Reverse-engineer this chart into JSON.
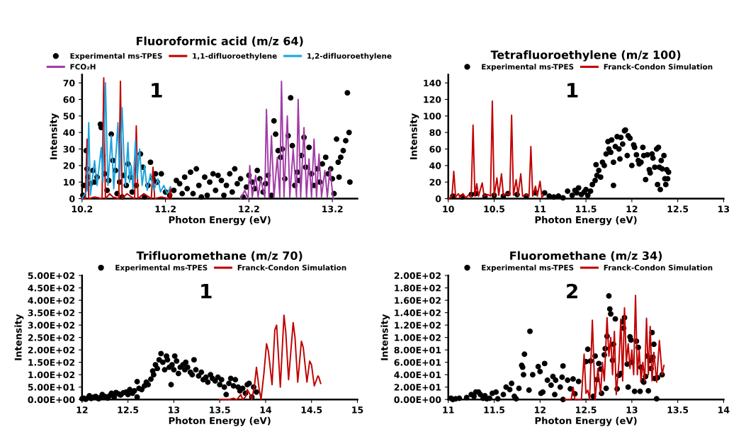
{
  "chart_data": [
    {
      "type": "line",
      "title": "Fluoroformic acid (m/z 64)",
      "xlabel": "Photon Energy (eV)",
      "ylabel": "Intensity",
      "annotations": [
        "1"
      ],
      "legend": "top",
      "grid": false,
      "xlim": [
        10.2,
        13.5
      ],
      "xticks": [
        10.2,
        11.2,
        12.2,
        13.2
      ],
      "ylim": [
        0,
        75
      ],
      "yticks": [
        0,
        10,
        20,
        30,
        40,
        50,
        60,
        70
      ],
      "series": [
        {
          "name": "Experimental ms-TPES",
          "type": "scatter",
          "marker": "circle",
          "color": "#000000",
          "x": [
            10.21,
            10.22,
            10.25,
            10.26,
            10.27,
            10.3,
            10.33,
            10.35,
            10.38,
            10.42,
            10.43,
            10.45,
            10.47,
            10.5,
            10.52,
            10.55,
            10.57,
            10.6,
            10.62,
            10.65,
            10.68,
            10.7,
            10.73,
            10.75,
            10.78,
            10.8,
            10.85,
            10.9,
            10.93,
            10.95,
            10.99,
            11.02,
            11.05,
            11.08,
            11.1,
            11.15,
            11.2,
            11.25,
            11.3,
            11.33,
            11.37,
            11.4,
            11.43,
            11.46,
            11.5,
            11.53,
            11.57,
            11.6,
            11.63,
            11.67,
            11.7,
            11.73,
            11.77,
            11.8,
            11.83,
            11.87,
            11.9,
            11.93,
            11.97,
            12.0,
            12.03,
            12.06,
            12.1,
            12.13,
            12.17,
            12.2,
            12.24,
            12.27,
            12.3,
            12.33,
            12.37,
            12.4,
            12.43,
            12.47,
            12.5,
            12.52,
            12.55,
            12.58,
            12.6,
            12.63,
            12.67,
            12.7,
            12.72,
            12.75,
            12.78,
            12.8,
            12.83,
            12.86,
            12.88,
            12.92,
            12.95,
            12.98,
            13.02,
            13.05,
            13.08,
            13.12,
            13.15,
            13.18,
            13.2,
            13.22,
            13.25,
            13.27,
            13.28,
            13.3,
            13.33,
            13.36,
            13.38,
            13.4,
            13.41
          ],
          "values": [
            2,
            8,
            29,
            18,
            13,
            9,
            17,
            10,
            13,
            45,
            43,
            26,
            15,
            5,
            11,
            39,
            23,
            17,
            3,
            10,
            1,
            14,
            8,
            21,
            13,
            4,
            8,
            27,
            19,
            1,
            8,
            22,
            12,
            15,
            10,
            15,
            4,
            2,
            5,
            11,
            9,
            3,
            13,
            6,
            16,
            3,
            18,
            8,
            1,
            13,
            2,
            10,
            15,
            5,
            14,
            11,
            2,
            8,
            15,
            4,
            18,
            9,
            12,
            1,
            7,
            14,
            10,
            6,
            17,
            12,
            4,
            9,
            14,
            2,
            47,
            39,
            29,
            25,
            30,
            12,
            38,
            61,
            32,
            8,
            16,
            11,
            26,
            37,
            19,
            31,
            15,
            8,
            18,
            10,
            21,
            25,
            15,
            18,
            12,
            3,
            36,
            22,
            13,
            25,
            29,
            35,
            64,
            40,
            10
          ]
        },
        {
          "name": "1,1-difluoroethylene",
          "color": "#c00000",
          "x": [
            10.2,
            10.24,
            10.26,
            10.28,
            10.35,
            10.44,
            10.46,
            10.48,
            10.53,
            10.57,
            10.64,
            10.66,
            10.68,
            10.74,
            10.79,
            10.83,
            10.85,
            10.87,
            10.94,
            11.0,
            11.03,
            11.05,
            11.07,
            11.15,
            11.24,
            11.26,
            11.27
          ],
          "values": [
            0,
            0,
            36,
            0,
            1,
            0,
            73,
            0,
            3,
            1,
            0,
            71,
            0,
            3,
            1,
            0,
            44,
            0,
            3,
            1,
            0,
            19,
            0,
            1,
            0,
            7,
            0
          ]
        },
        {
          "name": "1,2-difluoroethylene",
          "color": "#1ca3dc",
          "x": [
            10.2,
            10.26,
            10.28,
            10.3,
            10.35,
            10.38,
            10.43,
            10.45,
            10.48,
            10.51,
            10.55,
            10.58,
            10.63,
            10.65,
            10.68,
            10.7,
            10.72,
            10.75,
            10.77,
            10.79,
            10.81,
            10.84,
            10.86,
            10.89,
            10.92,
            10.95,
            10.98,
            11.02,
            11.06,
            11.11,
            11.14,
            11.18,
            11.22,
            11.26
          ],
          "values": [
            0,
            5,
            46,
            2,
            23,
            8,
            31,
            10,
            70,
            8,
            38,
            6,
            46,
            12,
            55,
            27,
            8,
            34,
            10,
            20,
            6,
            35,
            12,
            30,
            8,
            20,
            5,
            15,
            5,
            12,
            4,
            8,
            3,
            7
          ]
        },
        {
          "name": "FCO₂H",
          "color": "#a23ba6",
          "x": [
            12.1,
            12.15,
            12.19,
            12.21,
            12.24,
            12.28,
            12.31,
            12.34,
            12.39,
            12.41,
            12.44,
            12.47,
            12.5,
            12.54,
            12.57,
            12.59,
            12.62,
            12.66,
            12.69,
            12.73,
            12.77,
            12.79,
            12.82,
            12.86,
            12.89,
            12.92,
            12.95,
            12.98,
            13.01,
            13.04,
            13.07,
            13.11,
            13.14,
            13.17,
            13.21
          ],
          "values": [
            0,
            5,
            0,
            20,
            1,
            14,
            1,
            12,
            1,
            54,
            1,
            38,
            1,
            25,
            1,
            71,
            1,
            50,
            1,
            30,
            1,
            60,
            1,
            43,
            1,
            24,
            1,
            36,
            1,
            27,
            1,
            17,
            1,
            18,
            0
          ]
        }
      ]
    },
    {
      "type": "line",
      "title": "Tetrafluoroethylene (m/z 100)",
      "xlabel": "Photon Energy (eV)",
      "ylabel": "Intensity",
      "annotations": [
        "1"
      ],
      "legend": "top",
      "grid": false,
      "xlim": [
        10,
        13
      ],
      "xticks": [
        10,
        10.5,
        11,
        11.5,
        12,
        12.5,
        13
      ],
      "ylim": [
        0,
        150
      ],
      "yticks": [
        0,
        20,
        40,
        60,
        80,
        100,
        120,
        140
      ],
      "series": [
        {
          "name": "Experimental ms-TPES",
          "type": "scatter",
          "marker": "circle",
          "color": "#000000",
          "x": [
            10.05,
            10.15,
            10.25,
            10.3,
            10.4,
            10.5,
            10.6,
            10.65,
            10.75,
            10.85,
            10.95,
            11.05,
            11.1,
            11.15,
            11.2,
            11.25,
            11.3,
            11.35,
            11.38,
            11.4,
            11.42,
            11.45,
            11.48,
            11.5,
            11.52,
            11.55,
            11.57,
            11.6,
            11.61,
            11.62,
            11.64,
            11.66,
            11.68,
            11.7,
            11.72,
            11.74,
            11.75,
            11.77,
            11.78,
            11.8,
            11.8,
            11.82,
            11.84,
            11.86,
            11.87,
            11.88,
            11.9,
            11.92,
            11.93,
            11.95,
            11.96,
            11.98,
            12.0,
            12.02,
            12.03,
            12.05,
            12.07,
            12.08,
            12.1,
            12.12,
            12.13,
            12.15,
            12.17,
            12.19,
            12.2,
            12.22,
            12.23,
            12.25,
            12.27,
            12.28,
            12.29,
            12.3,
            12.31,
            12.32,
            12.33,
            12.35,
            12.36,
            12.37,
            12.38,
            12.39,
            12.4
          ],
          "values": [
            3,
            2,
            5,
            6,
            3,
            4,
            3,
            6,
            5,
            3,
            7,
            7,
            3,
            2,
            3,
            1,
            9,
            4,
            10,
            7,
            13,
            5,
            8,
            11,
            4,
            9,
            17,
            22,
            41,
            28,
            34,
            26,
            44,
            40,
            54,
            69,
            60,
            56,
            71,
            16,
            44,
            63,
            75,
            60,
            48,
            74,
            66,
            82,
            83,
            52,
            76,
            73,
            40,
            65,
            62,
            53,
            46,
            42,
            44,
            62,
            52,
            23,
            53,
            35,
            31,
            54,
            49,
            38,
            60,
            17,
            62,
            38,
            11,
            46,
            36,
            52,
            24,
            17,
            35,
            24,
            32
          ]
        },
        {
          "name": "Franck-Condon Simulation",
          "type": "line",
          "color": "#c00000",
          "x": [
            10.0,
            10.04,
            10.06,
            10.08,
            10.11,
            10.13,
            10.16,
            10.19,
            10.22,
            10.25,
            10.27,
            10.29,
            10.31,
            10.33,
            10.37,
            10.39,
            10.43,
            10.46,
            10.48,
            10.5,
            10.53,
            10.55,
            10.58,
            10.6,
            10.64,
            10.67,
            10.69,
            10.71,
            10.74,
            10.76,
            10.79,
            10.81,
            10.85,
            10.88,
            10.9,
            10.92,
            10.95,
            10.97,
            11.0,
            11.02,
            11.04
          ],
          "values": [
            0,
            2,
            33,
            2,
            6,
            1,
            6,
            1,
            4,
            3,
            89,
            3,
            18,
            3,
            19,
            3,
            5,
            3,
            118,
            3,
            25,
            4,
            30,
            4,
            6,
            4,
            101,
            4,
            23,
            4,
            30,
            3,
            5,
            3,
            63,
            3,
            15,
            3,
            21,
            2,
            4
          ]
        }
      ]
    },
    {
      "type": "line",
      "title": "Trifluoromethane (m/z 70)",
      "xlabel": "Photon Energy (eV)",
      "ylabel": "Intensity",
      "annotations": [
        "1"
      ],
      "legend": "top",
      "grid": false,
      "xlim": [
        12,
        15
      ],
      "xticks": [
        12,
        12.5,
        13,
        13.5,
        14,
        14.5,
        15
      ],
      "ylim": [
        0,
        500
      ],
      "yticks": [
        {
          "value": 0,
          "label": "0.00E+00"
        },
        {
          "value": 50,
          "label": "5.00E+01"
        },
        {
          "value": 100,
          "label": "1.00E+02"
        },
        {
          "value": 150,
          "label": "1.50E+02"
        },
        {
          "value": 200,
          "label": "2.00E+02"
        },
        {
          "value": 250,
          "label": "2.50E+02"
        },
        {
          "value": 300,
          "label": "3.00E+02"
        },
        {
          "value": 350,
          "label": "3.50E+02"
        },
        {
          "value": 400,
          "label": "4.00E+02"
        },
        {
          "value": 450,
          "label": "4.50E+02"
        },
        {
          "value": 500,
          "label": "5.00E+02"
        }
      ],
      "series": [
        {
          "name": "Experimental ms-TPES",
          "type": "scatter",
          "marker": "circle",
          "color": "#000000",
          "x": [
            12.0,
            12.02,
            12.04,
            12.07,
            12.08,
            12.1,
            12.13,
            12.15,
            12.18,
            12.2,
            12.22,
            12.25,
            12.28,
            12.3,
            12.32,
            12.35,
            12.37,
            12.4,
            12.42,
            12.45,
            12.48,
            12.5,
            12.52,
            12.55,
            12.57,
            12.6,
            12.6,
            12.62,
            12.65,
            12.68,
            12.7,
            12.72,
            12.75,
            12.77,
            12.78,
            12.8,
            12.82,
            12.84,
            12.86,
            12.88,
            12.9,
            12.92,
            12.93,
            12.95,
            12.97,
            12.98,
            13.0,
            13.01,
            13.03,
            13.05,
            13.07,
            13.1,
            13.12,
            13.13,
            13.15,
            13.18,
            13.2,
            13.22,
            13.24,
            13.27,
            13.3,
            13.32,
            13.35,
            13.37,
            13.4,
            13.42,
            13.45,
            13.48,
            13.5,
            13.52,
            13.55,
            13.57,
            13.6,
            13.62,
            13.65,
            13.67,
            13.7,
            13.72,
            13.75,
            13.78,
            13.8,
            13.82,
            13.85,
            13.87,
            13.9
          ],
          "values": [
            3,
            5,
            1,
            8,
            15,
            4,
            10,
            12,
            3,
            8,
            20,
            12,
            6,
            15,
            25,
            10,
            28,
            22,
            18,
            27,
            30,
            20,
            40,
            25,
            35,
            10,
            72,
            45,
            40,
            55,
            70,
            60,
            82,
            115,
            100,
            140,
            125,
            160,
            185,
            150,
            120,
            175,
            160,
            130,
            60,
            140,
            120,
            175,
            155,
            105,
            130,
            140,
            120,
            150,
            130,
            110,
            100,
            160,
            120,
            95,
            110,
            80,
            90,
            70,
            100,
            85,
            75,
            90,
            60,
            80,
            50,
            20,
            65,
            85,
            55,
            80,
            50,
            35,
            45,
            25,
            60,
            65,
            10,
            50,
            30
          ]
        },
        {
          "name": "Franck-Condon Simulation",
          "type": "line",
          "color": "#c00000",
          "x": [
            13.5,
            13.6,
            13.65,
            13.68,
            13.7,
            13.73,
            13.75,
            13.78,
            13.8,
            13.83,
            13.85,
            13.88,
            13.9,
            13.93,
            13.95,
            13.98,
            14.01,
            14.03,
            14.07,
            14.1,
            14.12,
            14.16,
            14.2,
            14.22,
            14.25,
            14.3,
            14.32,
            14.35,
            14.39,
            14.41,
            14.45,
            14.48,
            14.5,
            14.53,
            14.57,
            14.58,
            14.6
          ],
          "values": [
            0,
            0,
            5,
            0,
            5,
            20,
            0,
            10,
            40,
            20,
            0,
            60,
            130,
            40,
            0,
            100,
            225,
            195,
            60,
            280,
            300,
            50,
            340,
            270,
            80,
            310,
            250,
            70,
            235,
            210,
            70,
            155,
            140,
            55,
            95,
            90,
            65
          ]
        }
      ]
    },
    {
      "type": "line",
      "title": "Fluoromethane (m/z 34)",
      "xlabel": "Photon Energy (eV)",
      "ylabel": "Intensity",
      "annotations": [
        "2"
      ],
      "legend": "top",
      "grid": false,
      "xlim": [
        11,
        14
      ],
      "xticks": [
        11,
        11.5,
        12,
        12.5,
        13,
        13.5,
        14
      ],
      "ylim": [
        0,
        200
      ],
      "yticks": [
        {
          "value": 0,
          "label": "0.00E+00"
        },
        {
          "value": 20,
          "label": "2.00E+01"
        },
        {
          "value": 40,
          "label": "4.00E+01"
        },
        {
          "value": 60,
          "label": "6.00E+01"
        },
        {
          "value": 80,
          "label": "8.00E+01"
        },
        {
          "value": 100,
          "label": "1.00E+02"
        },
        {
          "value": 120,
          "label": "1.20E+02"
        },
        {
          "value": 140,
          "label": "1.40E+02"
        },
        {
          "value": 160,
          "label": "1.60E+02"
        },
        {
          "value": 180,
          "label": "1.80E+02"
        },
        {
          "value": 200,
          "label": "2.00E+02"
        }
      ],
      "series": [
        {
          "name": "Experimental ms-TPES",
          "type": "scatter",
          "marker": "circle",
          "color": "#000000",
          "x": [
            11.03,
            11.05,
            11.08,
            11.12,
            11.2,
            11.25,
            11.28,
            11.3,
            11.33,
            11.35,
            11.38,
            11.4,
            11.42,
            11.45,
            11.48,
            11.52,
            11.54,
            11.6,
            11.63,
            11.67,
            11.69,
            11.72,
            11.74,
            11.77,
            11.8,
            11.81,
            11.82,
            11.83,
            11.88,
            11.89,
            11.92,
            11.98,
            12.0,
            12.01,
            12.03,
            12.05,
            12.08,
            12.12,
            12.14,
            12.16,
            12.17,
            12.22,
            12.24,
            12.25,
            12.25,
            12.3,
            12.33,
            12.36,
            12.38,
            12.42,
            12.5,
            12.52,
            12.55,
            12.58,
            12.6,
            12.62,
            12.64,
            12.66,
            12.67,
            12.7,
            12.71,
            12.72,
            12.73,
            12.75,
            12.76,
            12.77,
            12.79,
            12.8,
            12.82,
            12.84,
            12.86,
            12.88,
            12.9,
            12.91,
            12.92,
            12.95,
            12.96,
            12.98,
            12.99,
            13.0,
            13.03,
            13.05,
            13.07,
            13.09,
            13.1,
            13.12,
            13.13,
            13.15,
            13.17,
            13.18,
            13.2,
            13.21,
            13.22,
            13.23,
            13.24,
            13.25,
            13.27,
            13.28,
            13.33
          ],
          "values": [
            2,
            0,
            1,
            2,
            3,
            8,
            5,
            12,
            12,
            8,
            2,
            6,
            1,
            2,
            10,
            12,
            1,
            8,
            20,
            16,
            26,
            5,
            1,
            18,
            55,
            52,
            40,
            73,
            15,
            110,
            40,
            53,
            45,
            10,
            12,
            58,
            31,
            23,
            37,
            8,
            31,
            20,
            36,
            54,
            0,
            31,
            17,
            33,
            9,
            29,
            61,
            81,
            62,
            5,
            70,
            32,
            58,
            49,
            10,
            72,
            82,
            18,
            102,
            167,
            146,
            138,
            63,
            89,
            130,
            17,
            39,
            42,
            125,
            115,
            132,
            57,
            20,
            101,
            96,
            60,
            13,
            94,
            84,
            13,
            52,
            30,
            28,
            37,
            70,
            14,
            63,
            50,
            108,
            68,
            89,
            34,
            1,
            35,
            40
          ]
        },
        {
          "name": "Franck-Condon Simulation",
          "type": "line",
          "color": "#c00000",
          "x": [
            12.27,
            12.34,
            12.36,
            12.38,
            12.45,
            12.48,
            12.5,
            12.52,
            12.54,
            12.57,
            12.6,
            12.63,
            12.66,
            12.68,
            12.7,
            12.73,
            12.75,
            12.77,
            12.79,
            12.81,
            12.83,
            12.86,
            12.88,
            12.9,
            12.92,
            12.94,
            12.96,
            12.98,
            13.0,
            13.02,
            13.04,
            13.06,
            13.08,
            13.1,
            13.12,
            13.14,
            13.16,
            13.18,
            13.2,
            13.22,
            13.24,
            13.27,
            13.3,
            13.33,
            13.35
          ],
          "values": [
            0,
            0,
            20,
            0,
            0,
            73,
            10,
            15,
            0,
            128,
            0,
            50,
            10,
            60,
            30,
            132,
            70,
            100,
            40,
            110,
            8,
            60,
            130,
            30,
            148,
            60,
            90,
            50,
            80,
            40,
            168,
            40,
            80,
            30,
            60,
            30,
            131,
            40,
            118,
            30,
            76,
            28,
            95,
            40,
            55
          ]
        }
      ]
    }
  ]
}
